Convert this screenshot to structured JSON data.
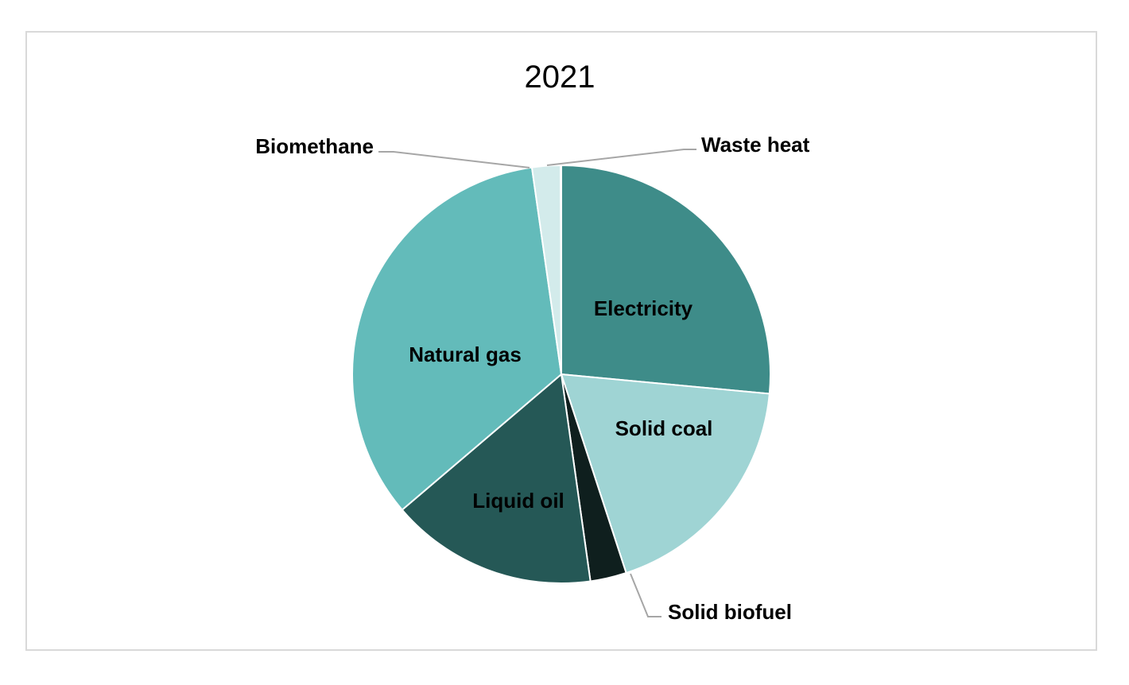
{
  "chart_data": {
    "type": "pie",
    "title": "2021",
    "start_angle_deg": 0,
    "direction": "clockwise",
    "slices": [
      {
        "label": "Electricity",
        "value": 26.5,
        "color": "#3e8c89"
      },
      {
        "label": "Solid coal",
        "value": 18.5,
        "color": "#9fd4d4"
      },
      {
        "label": "Solid biofuel",
        "value": 2.8,
        "color": "#0f1f1e"
      },
      {
        "label": "Liquid oil",
        "value": 16.0,
        "color": "#255856"
      },
      {
        "label": "Natural gas",
        "value": 34.0,
        "color": "#63bbba"
      },
      {
        "label": "Biomethane",
        "value": 2.2,
        "color": "#d3ebeb"
      },
      {
        "label": "Waste heat",
        "value": 0.05,
        "color": "#ffffff"
      }
    ]
  }
}
